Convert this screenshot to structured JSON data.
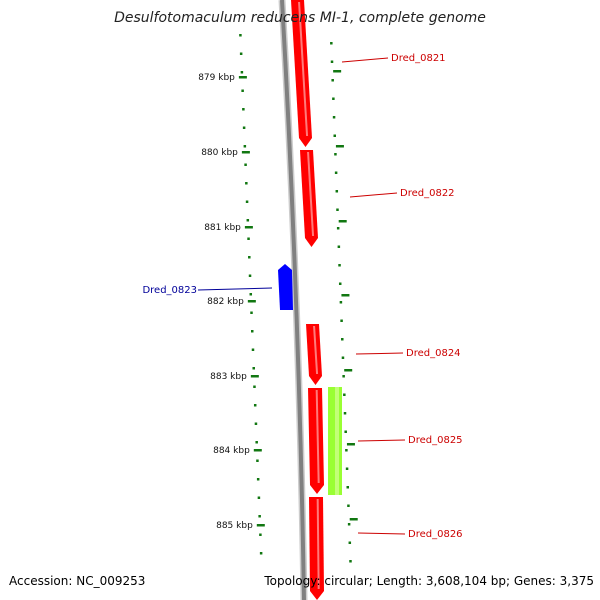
{
  "title": "Desulfotomaculum reducens MI-1, complete genome",
  "footer": {
    "accession": "Accession: NC_009253",
    "stats": "Topology: circular; Length: 3,608,104 bp; Genes: 3,375"
  },
  "colors": {
    "forward_gene": "#ff0000",
    "reverse_gene": "#0000ff",
    "other_feature": "#99ff33",
    "backbone": "#808080",
    "tick": "#117711",
    "forward_label": "#cc0000",
    "reverse_label": "#000099"
  },
  "ticks": [
    {
      "label": "879 kbp"
    },
    {
      "label": "880 kbp"
    },
    {
      "label": "881 kbp"
    },
    {
      "label": "882 kbp"
    },
    {
      "label": "883 kbp"
    },
    {
      "label": "884 kbp"
    },
    {
      "label": "885 kbp"
    }
  ],
  "genes": [
    {
      "name": "Dred_0821",
      "strand": "+"
    },
    {
      "name": "Dred_0822",
      "strand": "+"
    },
    {
      "name": "Dred_0823",
      "strand": "-"
    },
    {
      "name": "Dred_0824",
      "strand": "+"
    },
    {
      "name": "Dred_0825",
      "strand": "+"
    },
    {
      "name": "Dred_0826",
      "strand": "+"
    }
  ]
}
